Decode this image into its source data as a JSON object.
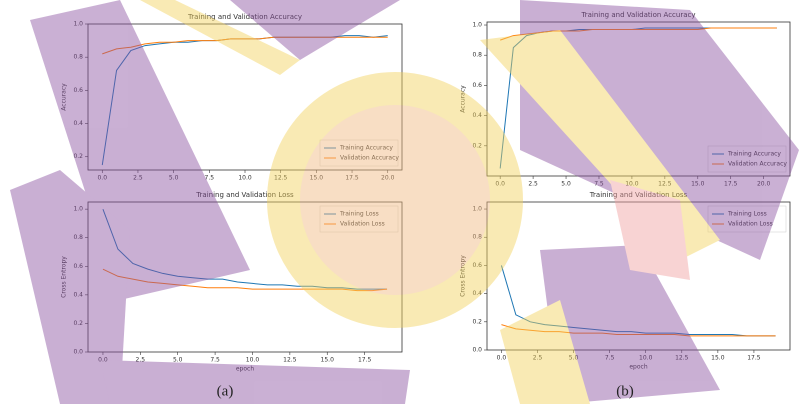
{
  "captions": [
    "(a)",
    "(b)"
  ],
  "chart_data": [
    {
      "type": "line",
      "title": "Training and Validation Accuracy",
      "y_label": "Accuracy",
      "x": [
        0,
        1,
        2,
        3,
        4,
        5,
        6,
        7,
        8,
        9,
        10,
        11,
        12,
        13,
        14,
        15,
        16,
        17,
        18,
        19,
        20
      ],
      "series": [
        {
          "name": "Training Accuracy",
          "color": "#1f77b4",
          "values": [
            0.15,
            0.72,
            0.84,
            0.87,
            0.88,
            0.89,
            0.89,
            0.9,
            0.9,
            0.91,
            0.91,
            0.91,
            0.92,
            0.92,
            0.92,
            0.92,
            0.92,
            0.93,
            0.93,
            0.92,
            0.93
          ]
        },
        {
          "name": "Validation Accuracy",
          "color": "#ff7f0e",
          "values": [
            0.82,
            0.85,
            0.86,
            0.88,
            0.89,
            0.89,
            0.9,
            0.9,
            0.9,
            0.91,
            0.91,
            0.91,
            0.92,
            0.92,
            0.92,
            0.92,
            0.92,
            0.92,
            0.92,
            0.92,
            0.92
          ]
        }
      ],
      "xlim": [
        -1,
        21
      ],
      "ylim": [
        0.12,
        1.0
      ],
      "xticks": [
        {
          "value": 0,
          "label": "0.0"
        },
        2.5,
        {
          "value": 5,
          "label": "5.0"
        },
        7.5,
        {
          "value": 10,
          "label": "10.0"
        },
        12.5,
        {
          "value": 15,
          "label": "15.0"
        },
        17.5,
        {
          "value": 20,
          "label": "20.0"
        }
      ],
      "yticks": [
        {
          "value": 0.2,
          "label": "0.2"
        },
        {
          "value": 0.4,
          "label": "0.4"
        },
        {
          "value": 0.6,
          "label": "0.6"
        },
        {
          "value": 0.8,
          "label": "0.8"
        },
        {
          "value": 1,
          "label": "1.0"
        }
      ],
      "legend": "lower right"
    },
    {
      "type": "line",
      "title": "Training and Validation Accuracy",
      "y_label": "Accuracy",
      "x": [
        0,
        1,
        2,
        3,
        4,
        5,
        6,
        7,
        8,
        9,
        10,
        11,
        12,
        13,
        14,
        15,
        16,
        17,
        18,
        19,
        20,
        21
      ],
      "series": [
        {
          "name": "Training Accuracy",
          "color": "#1f77b4",
          "values": [
            0.05,
            0.85,
            0.93,
            0.95,
            0.96,
            0.96,
            0.97,
            0.97,
            0.97,
            0.97,
            0.97,
            0.98,
            0.98,
            0.98,
            0.98,
            0.98,
            0.98,
            0.98,
            0.98,
            0.98,
            0.98,
            0.98
          ]
        },
        {
          "name": "Validation Accuracy",
          "color": "#ff7f0e",
          "values": [
            0.9,
            0.93,
            0.94,
            0.95,
            0.96,
            0.96,
            0.96,
            0.97,
            0.97,
            0.97,
            0.97,
            0.97,
            0.97,
            0.97,
            0.97,
            0.97,
            0.98,
            0.98,
            0.98,
            0.98,
            0.98,
            0.98
          ]
        }
      ],
      "xlim": [
        -1,
        22
      ],
      "ylim": [
        0.0,
        1.02
      ],
      "xticks": [
        {
          "value": 0,
          "label": "0.0"
        },
        2.5,
        {
          "value": 5,
          "label": "5.0"
        },
        7.5,
        {
          "value": 10,
          "label": "10.0"
        },
        12.5,
        {
          "value": 15,
          "label": "15.0"
        },
        17.5,
        {
          "value": 20,
          "label": "20.0"
        }
      ],
      "yticks": [
        {
          "value": 0.2,
          "label": "0.2"
        },
        {
          "value": 0.4,
          "label": "0.4"
        },
        {
          "value": 0.6,
          "label": "0.6"
        },
        {
          "value": 0.8,
          "label": "0.8"
        },
        {
          "value": 1,
          "label": "1.0"
        }
      ],
      "legend": "lower right"
    },
    {
      "type": "line",
      "title": "Training and Validation Loss",
      "y_label": "Cross Entropy",
      "x_label": "epoch",
      "x": [
        0,
        1,
        2,
        3,
        4,
        5,
        6,
        7,
        8,
        9,
        10,
        11,
        12,
        13,
        14,
        15,
        16,
        17,
        18,
        19
      ],
      "series": [
        {
          "name": "Training Loss",
          "color": "#1f77b4",
          "values": [
            1.0,
            0.72,
            0.62,
            0.58,
            0.55,
            0.53,
            0.52,
            0.51,
            0.51,
            0.49,
            0.48,
            0.47,
            0.47,
            0.46,
            0.46,
            0.45,
            0.45,
            0.44,
            0.44,
            0.44
          ]
        },
        {
          "name": "Validation Loss",
          "color": "#ff7f0e",
          "values": [
            0.58,
            0.53,
            0.51,
            0.49,
            0.48,
            0.47,
            0.46,
            0.45,
            0.45,
            0.45,
            0.44,
            0.44,
            0.44,
            0.44,
            0.44,
            0.44,
            0.44,
            0.43,
            0.43,
            0.44
          ]
        }
      ],
      "xlim": [
        -1,
        20
      ],
      "ylim": [
        0.0,
        1.05
      ],
      "xticks": [
        {
          "value": 0,
          "label": "0.0"
        },
        2.5,
        {
          "value": 5,
          "label": "5.0"
        },
        7.5,
        {
          "value": 10,
          "label": "10.0"
        },
        12.5,
        {
          "value": 15,
          "label": "15.0"
        },
        17.5
      ],
      "yticks": [
        {
          "value": 0,
          "label": "0.0"
        },
        {
          "value": 0.2,
          "label": "0.2"
        },
        {
          "value": 0.4,
          "label": "0.4"
        },
        {
          "value": 0.6,
          "label": "0.6"
        },
        {
          "value": 0.8,
          "label": "0.8"
        },
        {
          "value": 1,
          "label": "1.0"
        }
      ],
      "legend": "upper right"
    },
    {
      "type": "line",
      "title": "Training and Validation Loss",
      "y_label": "Cross Entropy",
      "x_label": "epoch",
      "x": [
        0,
        1,
        2,
        3,
        4,
        5,
        6,
        7,
        8,
        9,
        10,
        11,
        12,
        13,
        14,
        15,
        16,
        17,
        18,
        19
      ],
      "series": [
        {
          "name": "Training Loss",
          "color": "#1f77b4",
          "values": [
            0.6,
            0.25,
            0.2,
            0.18,
            0.17,
            0.16,
            0.15,
            0.14,
            0.13,
            0.13,
            0.12,
            0.12,
            0.12,
            0.11,
            0.11,
            0.11,
            0.11,
            0.1,
            0.1,
            0.1
          ]
        },
        {
          "name": "Validation Loss",
          "color": "#ff7f0e",
          "values": [
            0.18,
            0.15,
            0.14,
            0.13,
            0.13,
            0.12,
            0.12,
            0.12,
            0.11,
            0.11,
            0.11,
            0.11,
            0.11,
            0.1,
            0.1,
            0.1,
            0.1,
            0.1,
            0.1,
            0.1
          ]
        }
      ],
      "xlim": [
        -1,
        20
      ],
      "ylim": [
        0.0,
        1.05
      ],
      "xticks": [
        {
          "value": 0,
          "label": "0.0"
        },
        2.5,
        {
          "value": 5,
          "label": "5.0"
        },
        7.5,
        {
          "value": 10,
          "label": "10.0"
        },
        12.5,
        {
          "value": 15,
          "label": "15.0"
        },
        17.5
      ],
      "yticks": [
        {
          "value": 0,
          "label": "0.0"
        },
        {
          "value": 0.2,
          "label": "0.2"
        },
        {
          "value": 0.4,
          "label": "0.4"
        },
        {
          "value": 0.6,
          "label": "0.6"
        },
        {
          "value": 0.8,
          "label": "0.8"
        },
        {
          "value": 1,
          "label": "1.0"
        }
      ],
      "legend": "upper right"
    }
  ]
}
